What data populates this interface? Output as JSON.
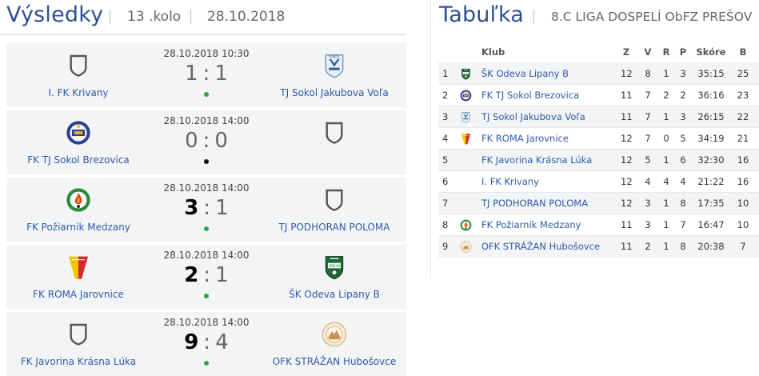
{
  "results": {
    "title": "Výsledky",
    "round": "13 .kolo",
    "date": "28.10.2018",
    "matches": [
      {
        "home": "I. FK Krivany",
        "home_logo": "shield-placeholder-icon",
        "away": "TJ Sokol Jakubova Voľa",
        "away_logo": "sokol-jakubova-crest-icon",
        "datetime": "28.10.2018 10:30",
        "home_score": "1",
        "away_score": "1",
        "winner": "none",
        "indicator_color": "#2aa84a"
      },
      {
        "home": "FK TJ Sokol Brezovica",
        "home_logo": "sokol-brezovica-crest-icon",
        "away": "",
        "away_logo": "shield-placeholder-icon",
        "datetime": "28.10.2018 14:00",
        "home_score": "0",
        "away_score": "0",
        "winner": "none",
        "indicator_color": "#111111"
      },
      {
        "home": "FK Požiarnik Medzany",
        "home_logo": "poziarnik-medzany-crest-icon",
        "away": "TJ PODHORAN POLOMA",
        "away_logo": "shield-placeholder-icon",
        "datetime": "28.10.2018 14:00",
        "home_score": "3",
        "away_score": "1",
        "winner": "home",
        "indicator_color": "#2aa84a"
      },
      {
        "home": "FK ROMA Jarovnice",
        "home_logo": "roma-jarovnice-crest-icon",
        "away": "ŠK Odeva Lipany B",
        "away_logo": "odeva-lipany-crest-icon",
        "datetime": "28.10.2018 14:00",
        "home_score": "2",
        "away_score": "1",
        "winner": "home",
        "indicator_color": "#2aa84a"
      },
      {
        "home": "FK Javorina Krásna Lúka",
        "home_logo": "shield-placeholder-icon",
        "away": "OFK STRÁŽAN Hubošovce",
        "away_logo": "strazan-hubosovce-crest-icon",
        "datetime": "28.10.2018 14:00",
        "home_score": "9",
        "away_score": "4",
        "winner": "home",
        "indicator_color": "#2aa84a"
      }
    ]
  },
  "table": {
    "title": "Tabuľka",
    "league": "8.C LIGA DOSPELÍ ObFZ PREŠOV",
    "headers": {
      "club": "Klub",
      "z": "Z",
      "v": "V",
      "r": "R",
      "p": "P",
      "score": "Skóre",
      "b": "B"
    },
    "rows": [
      {
        "pos": "1",
        "logo": "odeva-lipany-crest-icon",
        "club": "ŠK Odeva Lipany B",
        "z": "12",
        "v": "8",
        "r": "1",
        "p": "3",
        "score": "35:15",
        "b": "25"
      },
      {
        "pos": "2",
        "logo": "sokol-brezovica-crest-icon",
        "club": "FK TJ Sokol Brezovica",
        "z": "11",
        "v": "7",
        "r": "2",
        "p": "2",
        "score": "36:16",
        "b": "23"
      },
      {
        "pos": "3",
        "logo": "sokol-jakubova-crest-icon",
        "club": "TJ Sokol Jakubova Voľa",
        "z": "11",
        "v": "7",
        "r": "1",
        "p": "3",
        "score": "26:15",
        "b": "22"
      },
      {
        "pos": "4",
        "logo": "roma-jarovnice-crest-icon",
        "club": "FK ROMA Jarovnice",
        "z": "12",
        "v": "7",
        "r": "0",
        "p": "5",
        "score": "34:19",
        "b": "21"
      },
      {
        "pos": "5",
        "logo": "",
        "club": "FK Javorina Krásna Lúka",
        "z": "12",
        "v": "5",
        "r": "1",
        "p": "6",
        "score": "32:30",
        "b": "16"
      },
      {
        "pos": "6",
        "logo": "",
        "club": "I. FK Krivany",
        "z": "12",
        "v": "4",
        "r": "4",
        "p": "4",
        "score": "21:22",
        "b": "16"
      },
      {
        "pos": "7",
        "logo": "",
        "club": "TJ PODHORAN POLOMA",
        "z": "12",
        "v": "3",
        "r": "1",
        "p": "8",
        "score": "17:35",
        "b": "10"
      },
      {
        "pos": "8",
        "logo": "poziarnik-medzany-crest-icon",
        "club": "FK Požiarnik Medzany",
        "z": "11",
        "v": "3",
        "r": "1",
        "p": "7",
        "score": "16:47",
        "b": "10"
      },
      {
        "pos": "9",
        "logo": "strazan-hubosovce-crest-icon",
        "club": "OFK STRÁŽAN Hubošovce",
        "z": "11",
        "v": "2",
        "r": "1",
        "p": "8",
        "score": "20:38",
        "b": "7"
      }
    ]
  },
  "colors": {
    "title_blue": "#2f4f93",
    "link_blue": "#2f5aa8",
    "win_green": "#2aa84a",
    "row_alt": "#f3f4f5"
  }
}
